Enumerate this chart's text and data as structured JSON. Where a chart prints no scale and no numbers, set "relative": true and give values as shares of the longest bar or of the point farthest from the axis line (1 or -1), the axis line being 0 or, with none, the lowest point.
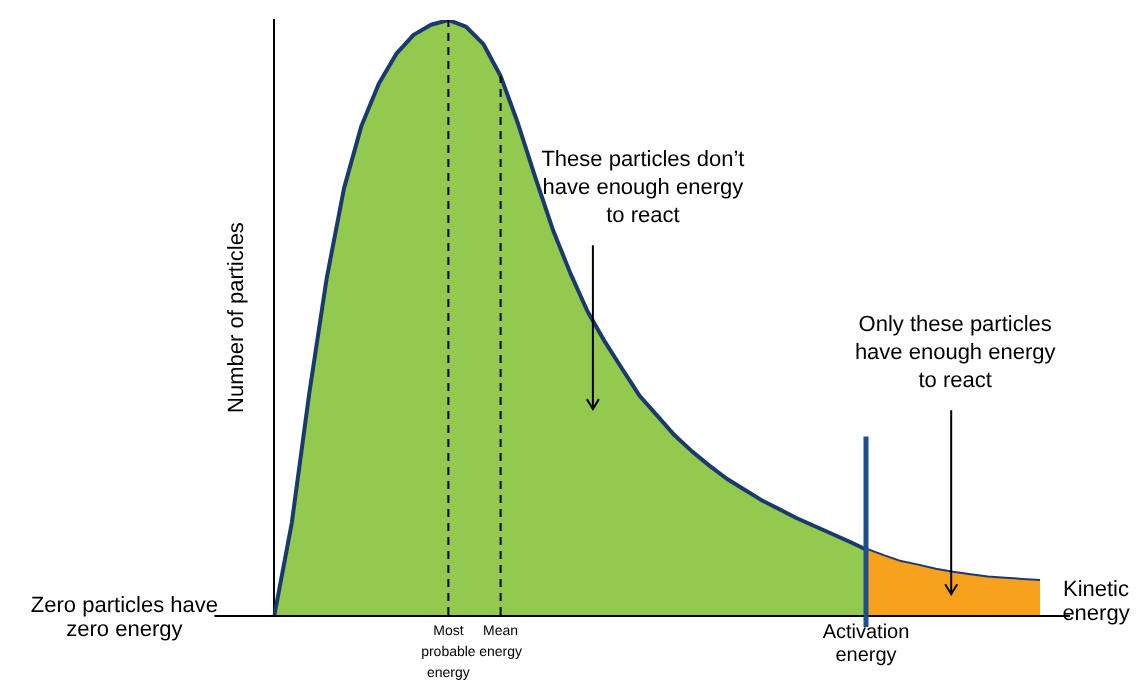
{
  "chart_data": {
    "type": "area",
    "relative": true,
    "ylabel": "Number of particles",
    "xlabel": "Kinetic energy",
    "grid": false,
    "legend": false,
    "marker": "none",
    "categories": [
      null,
      null,
      null,
      null,
      null,
      null,
      null,
      null,
      null,
      null,
      "Most probable energy",
      null,
      null,
      "Mean energy",
      null,
      null,
      null,
      null,
      null,
      null,
      null,
      null,
      null,
      null,
      null,
      null,
      null,
      null,
      null,
      null,
      null,
      null,
      null,
      null,
      "Activation energy",
      null,
      null,
      null,
      null,
      null,
      null,
      null,
      null,
      null,
      null
    ],
    "series": [
      {
        "color": "#92c94e",
        "values": [
          0,
          0.155,
          0.372,
          0.565,
          0.717,
          0.822,
          0.893,
          0.943,
          0.975,
          0.992,
          1,
          0.989,
          0.96,
          0.906,
          0.826,
          0.735,
          0.648,
          0.575,
          0.51,
          0.459,
          0.413,
          0.368,
          0.335,
          0.302,
          0.275,
          0.251,
          0.229,
          0.211,
          0.193,
          0.178,
          0.163,
          0.15,
          0.137,
          0.124,
          0.11,
          0.099,
          0.089,
          0.083,
          0.076,
          0.071,
          0.067,
          0.063,
          0.061,
          0.059,
          0.057
        ]
      },
      {
        "color": "#f7a11d",
        "values": [
          null,
          null,
          null,
          null,
          null,
          null,
          null,
          null,
          null,
          null,
          null,
          null,
          null,
          null,
          null,
          null,
          null,
          null,
          null,
          null,
          null,
          null,
          null,
          null,
          null,
          null,
          null,
          null,
          null,
          null,
          null,
          null,
          null,
          null,
          0.11,
          0.099,
          0.089,
          0.083,
          0.076,
          0.071,
          0.067,
          0.063,
          0.061,
          0.059,
          0.057
        ]
      }
    ],
    "ref_lines": [
      {
        "axis": "x",
        "value": "Most probable energy",
        "line_style": "dashed",
        "color": "#000000"
      },
      {
        "axis": "x",
        "value": "Mean energy",
        "line_style": "dashed",
        "color": "#000000"
      },
      {
        "axis": "x",
        "value": "Activation energy",
        "line_style": "solid",
        "color": "#1f4e8c"
      }
    ],
    "annotations": [
      "Zero particles have zero energy",
      "These particles don’t have enough energy to react",
      "Only these particles have enough energy to react"
    ]
  }
}
